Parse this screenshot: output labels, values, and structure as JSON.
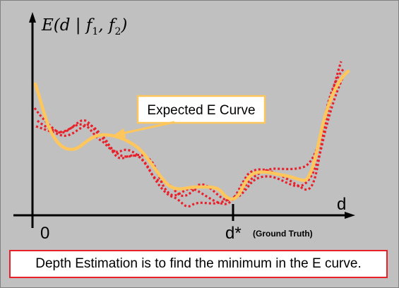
{
  "y_axis_label": {
    "main_prefix": "E(d | f",
    "sub1": "1",
    "sep": ", f",
    "sub2": "2",
    "close": ")"
  },
  "x_axis_label": "d",
  "origin_label": "0",
  "dstar_label": "d*",
  "ground_truth_note": "(Ground Truth)",
  "callout": "Expected E Curve",
  "caption": "Depth Estimation is to find the minimum in the E curve.",
  "colors": {
    "expected_curve": "#ffc65c",
    "noisy_curves": "#e8202a",
    "background": "#c0c0c0",
    "caption_border": "#e8202a"
  }
}
